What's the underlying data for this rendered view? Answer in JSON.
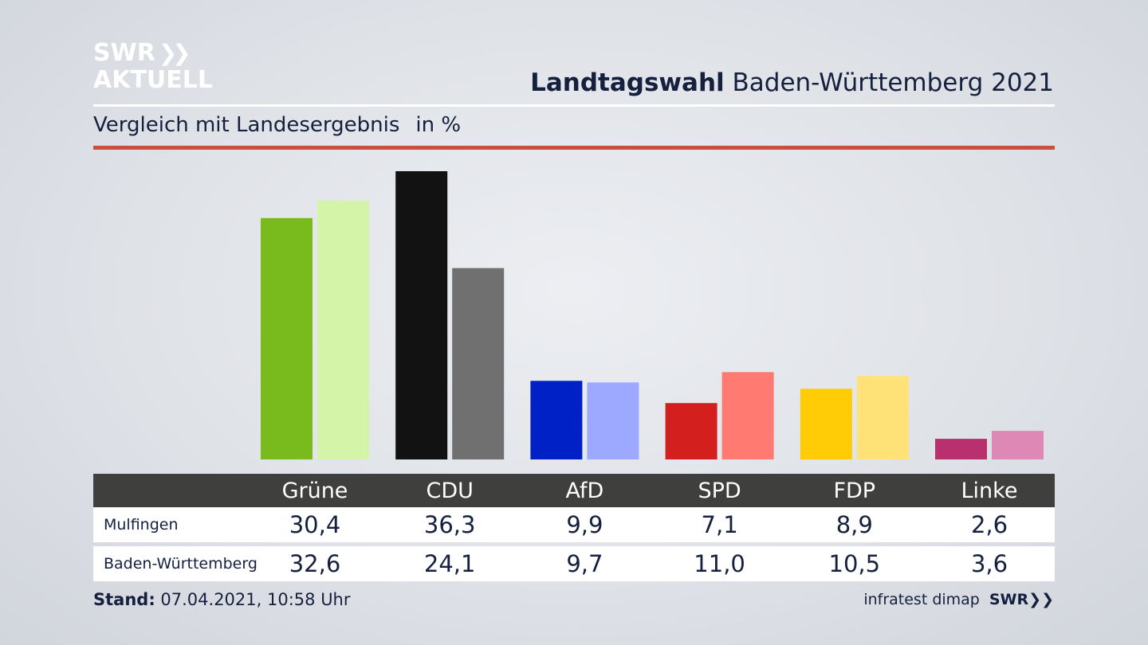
{
  "logo": {
    "line1": "SWR",
    "line2": "AKTUELL"
  },
  "header": {
    "title_bold": "Landtagswahl",
    "title_rest": "Baden-Württemberg 2021"
  },
  "subheader": {
    "text": "Vergleich mit Landesergebnis",
    "unit": "in %"
  },
  "footer": {
    "stand_label": "Stand:",
    "stand_value": "07.04.2021, 10:58 Uhr",
    "source": "infratest dimap",
    "source_logo": "SWR"
  },
  "chart_data": {
    "type": "bar",
    "categories": [
      "Grüne",
      "CDU",
      "AfD",
      "SPD",
      "FDP",
      "Linke"
    ],
    "series": [
      {
        "name": "Mulfingen",
        "values": [
          30.4,
          36.3,
          9.9,
          7.1,
          8.9,
          2.6
        ],
        "colors": [
          "#79bb1c",
          "#121212",
          "#0021c6",
          "#d41f1f",
          "#ffcc05",
          "#b8306e"
        ]
      },
      {
        "name": "Baden-Württemberg",
        "values": [
          32.6,
          24.1,
          9.7,
          11.0,
          10.5,
          3.6
        ],
        "colors": [
          "#d4f4a7",
          "#717070",
          "#9ca9ff",
          "#ff7b71",
          "#ffe277",
          "#de88b6"
        ]
      }
    ],
    "display_values": [
      [
        "30,4",
        "36,3",
        "9,9",
        "7,1",
        "8,9",
        "2,6"
      ],
      [
        "32,6",
        "24,1",
        "9,7",
        "11,0",
        "10,5",
        "3,6"
      ]
    ],
    "title": "Landtagswahl Baden-Württemberg 2021",
    "subtitle": "Vergleich mit Landesergebnis",
    "ylabel": "in %",
    "ylim": [
      0,
      36.3
    ],
    "grid": false,
    "legend": "table-below"
  }
}
